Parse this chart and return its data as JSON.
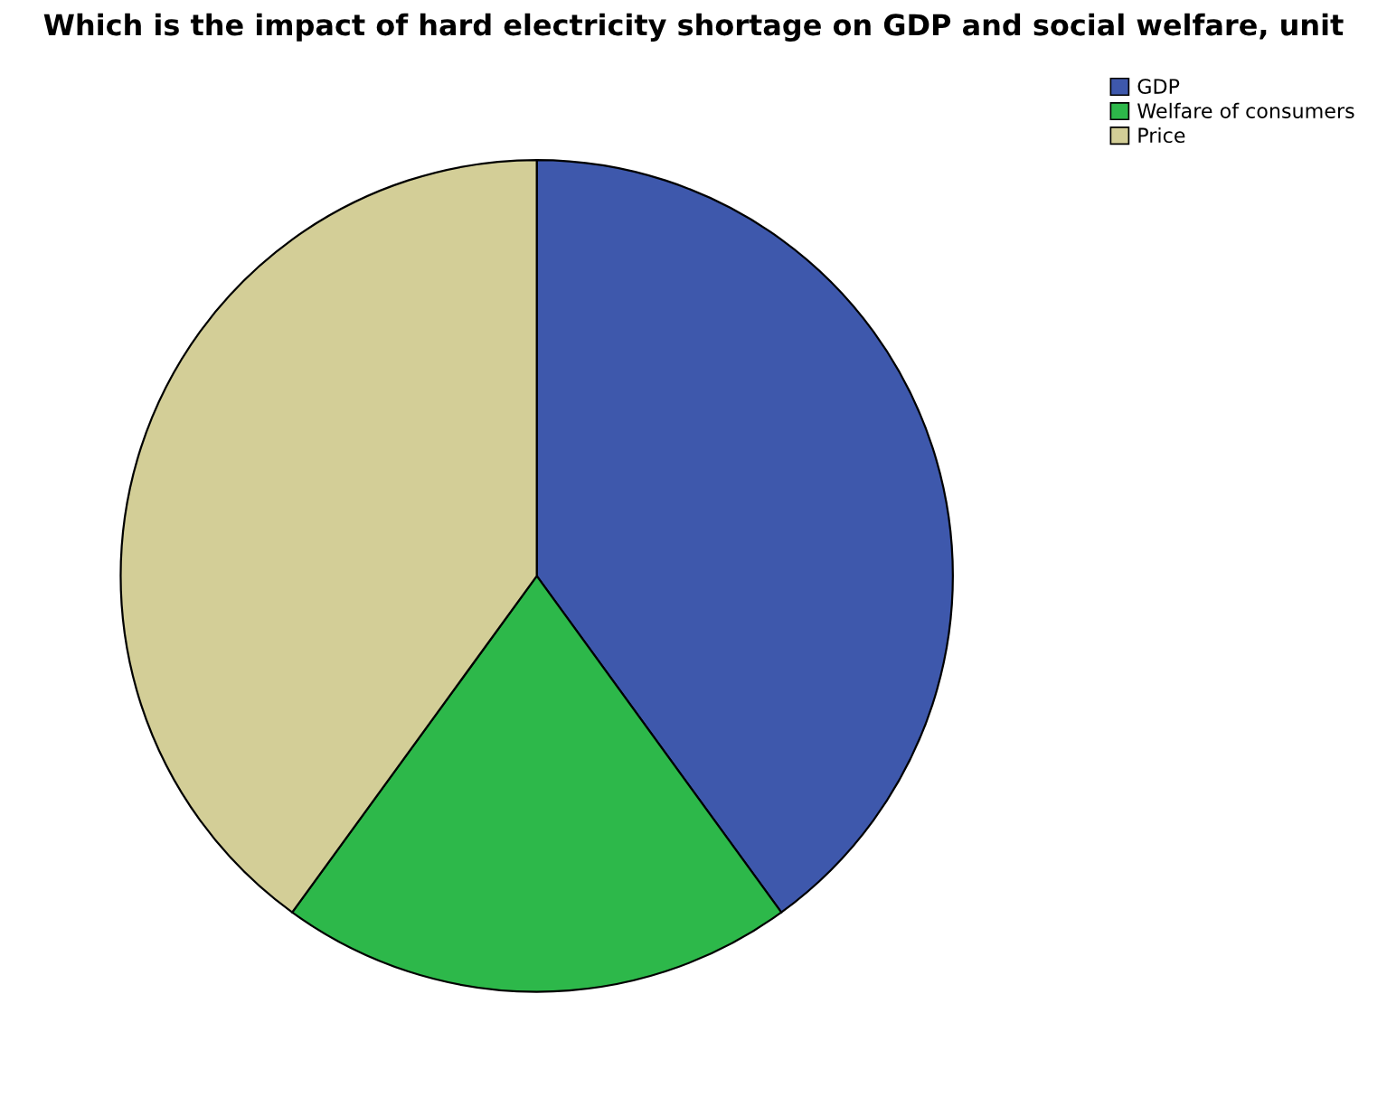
{
  "chart_data": {
    "type": "pie",
    "title": "Which is the impact of hard electricity shortage on GDP and social welfare, unit",
    "categories": [
      "GDP",
      "Welfare of consumers",
      "Price"
    ],
    "values": [
      40,
      20,
      40
    ],
    "colors": [
      "#3e58ac",
      "#2db84a",
      "#d3ce97"
    ],
    "legend": "top right"
  }
}
